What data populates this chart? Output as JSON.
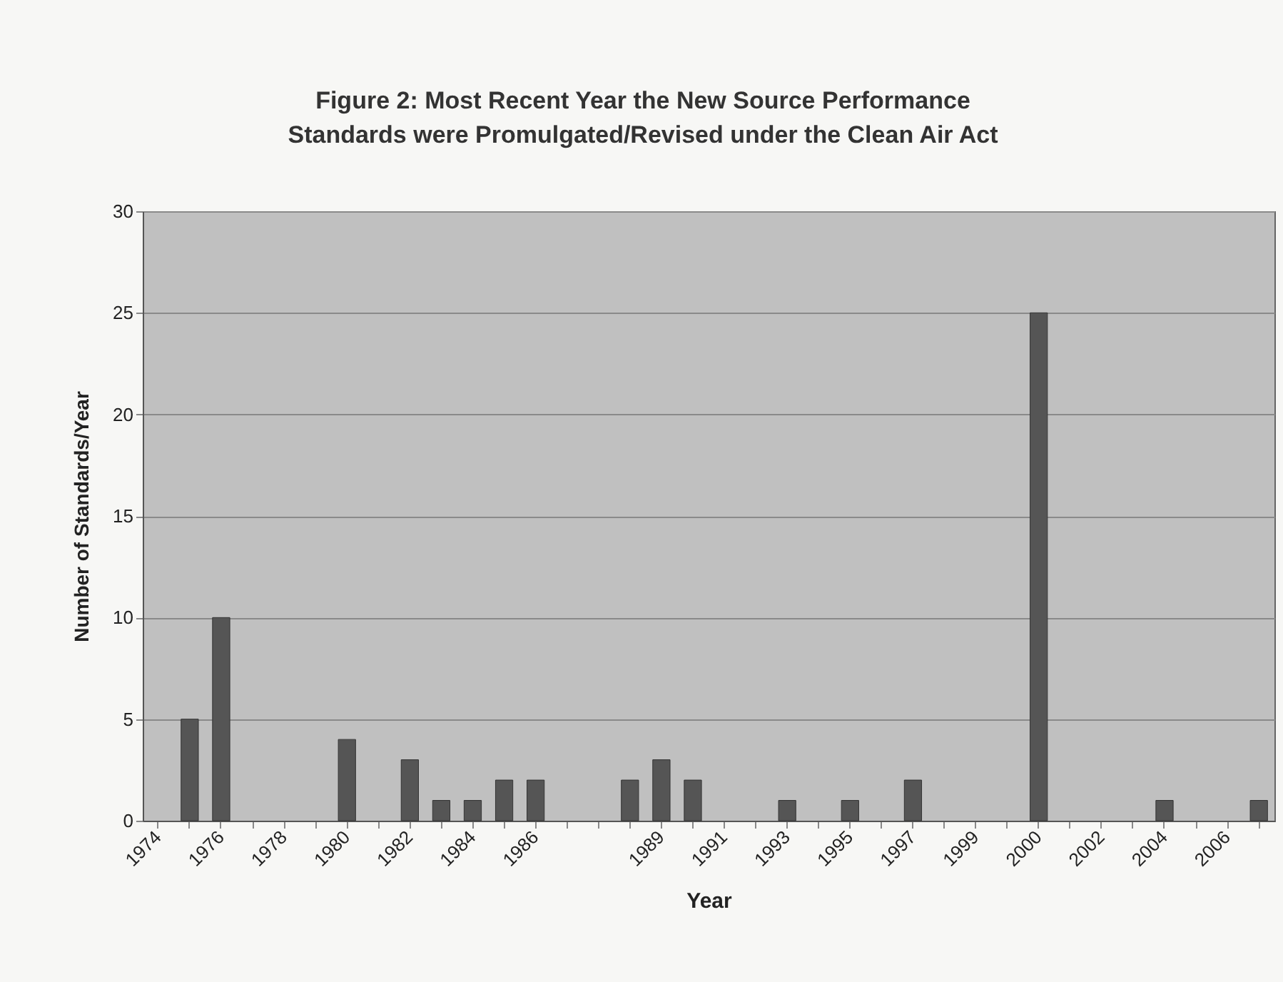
{
  "chart_data": {
    "type": "bar",
    "title": "Figure 2: Most Recent Year the New Source Performance Standards were Promulgated/Revised under the Clean Air Act",
    "xlabel": "Year",
    "ylabel": "Number of Standards/Year",
    "categories": [
      "1974",
      null,
      "1976",
      null,
      "1978",
      null,
      "1980",
      null,
      "1982",
      null,
      "1984",
      null,
      "1986",
      null,
      null,
      null,
      "1989",
      null,
      "1991",
      null,
      "1993",
      null,
      "1995",
      null,
      "1997",
      null,
      "1999",
      null,
      "2000",
      null,
      "2002",
      null,
      "2004",
      null,
      "2006",
      null
    ],
    "values": [
      null,
      5,
      10,
      null,
      null,
      null,
      4,
      null,
      3,
      1,
      1,
      2,
      2,
      null,
      null,
      2,
      3,
      2,
      null,
      null,
      1,
      null,
      1,
      null,
      2,
      null,
      null,
      null,
      25,
      null,
      null,
      null,
      1,
      null,
      null,
      1
    ],
    "color": "#555555",
    "ylim": [
      0,
      30
    ],
    "yticks": [
      0,
      5,
      10,
      15,
      20,
      25,
      30
    ],
    "grid": "y"
  }
}
